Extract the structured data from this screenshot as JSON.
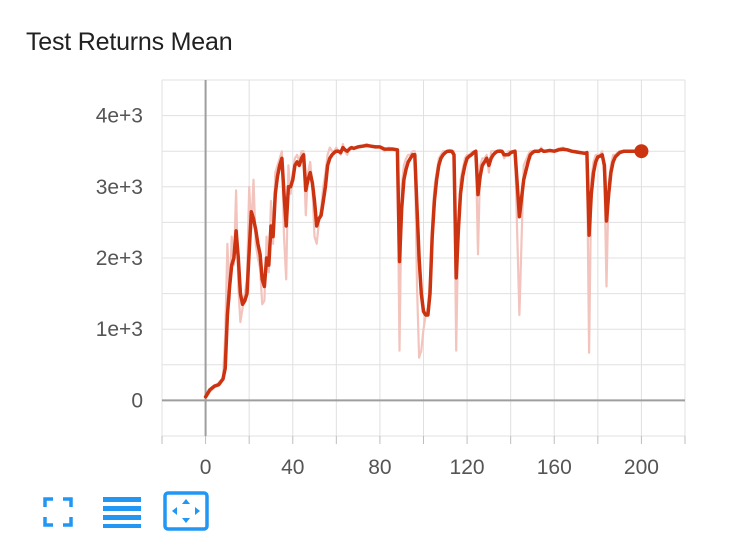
{
  "title": "Test Returns Mean",
  "colors": {
    "line": "#cc3311",
    "raw": "#f2c4bd",
    "grid": "#e0e0e0",
    "axis": "#9e9e9e",
    "accent": "#2196f3"
  },
  "toolbar": [
    {
      "name": "fit-domain-icon"
    },
    {
      "name": "toggle-log-scale-icon"
    },
    {
      "name": "fit-to-data-icon"
    }
  ],
  "chart_data": {
    "type": "line",
    "title": "Test Returns Mean",
    "xlabel": "",
    "ylabel": "",
    "xlim": [
      -20,
      220
    ],
    "ylim": [
      -500,
      4500
    ],
    "xticks": [
      0,
      40,
      80,
      120,
      160,
      200
    ],
    "xtick_labels": [
      "0",
      "40",
      "80",
      "120",
      "160",
      "200"
    ],
    "yticks": [
      0,
      1000,
      2000,
      3000,
      4000
    ],
    "ytick_labels": [
      "0",
      "1e+3",
      "2e+3",
      "3e+3",
      "4e+3"
    ],
    "grid": true,
    "series": [
      {
        "style": "smoothed",
        "x": [
          0,
          2,
          4,
          6,
          8,
          9,
          10,
          11,
          12,
          13,
          14,
          15,
          16,
          17,
          18,
          19,
          20,
          21,
          22,
          23,
          24,
          25,
          26,
          27,
          28,
          29,
          30,
          31,
          32,
          33,
          34,
          35,
          36,
          37,
          38,
          39,
          40,
          41,
          42,
          43,
          44,
          45,
          46,
          47,
          48,
          49,
          50,
          51,
          52,
          53,
          54,
          55,
          56,
          57,
          58,
          59,
          60,
          61,
          62,
          63,
          64,
          65,
          66,
          67,
          68,
          70,
          72,
          74,
          76,
          78,
          80,
          82,
          84,
          86,
          88,
          89,
          90,
          91,
          92,
          93,
          94,
          95,
          96,
          97,
          98,
          99,
          100,
          101,
          102,
          103,
          104,
          105,
          106,
          107,
          108,
          109,
          110,
          111,
          112,
          113,
          114,
          115,
          116,
          117,
          118,
          119,
          120,
          121,
          122,
          123,
          124,
          125,
          126,
          127,
          128,
          129,
          130,
          131,
          132,
          133,
          134,
          135,
          136,
          137,
          138,
          139,
          140,
          142,
          144,
          146,
          148,
          149,
          150,
          151,
          152,
          153,
          154,
          155,
          156,
          158,
          160,
          162,
          164,
          166,
          168,
          170,
          172,
          174,
          175,
          176,
          177,
          178,
          179,
          180,
          181,
          182,
          183,
          184,
          185,
          186,
          187,
          188,
          189,
          190,
          192,
          194,
          196,
          198,
          200
        ],
        "y": [
          50,
          150,
          200,
          220,
          300,
          450,
          1200,
          1600,
          1900,
          2000,
          2380,
          2000,
          1500,
          1350,
          1400,
          1500,
          2100,
          2650,
          2550,
          2400,
          2200,
          2050,
          1700,
          1600,
          2000,
          1900,
          2450,
          2300,
          2900,
          3150,
          3300,
          3400,
          2900,
          2450,
          3000,
          3000,
          3100,
          3300,
          3350,
          3300,
          3400,
          3450,
          2950,
          3100,
          3200,
          3050,
          2800,
          2450,
          2550,
          2600,
          2800,
          3000,
          3300,
          3400,
          3450,
          3480,
          3500,
          3500,
          3480,
          3550,
          3520,
          3500,
          3530,
          3550,
          3540,
          3560,
          3570,
          3580,
          3570,
          3560,
          3560,
          3530,
          3530,
          3530,
          3520,
          1950,
          2700,
          3100,
          3250,
          3350,
          3400,
          3450,
          3450,
          2700,
          2000,
          1500,
          1250,
          1200,
          1200,
          1500,
          2300,
          2800,
          3100,
          3300,
          3400,
          3450,
          3480,
          3500,
          3500,
          3500,
          3450,
          1720,
          2400,
          2900,
          3150,
          3300,
          3400,
          3430,
          3450,
          3480,
          3500,
          2890,
          3150,
          3300,
          3350,
          3400,
          3300,
          3400,
          3450,
          3480,
          3500,
          3500,
          3500,
          3450,
          3450,
          3450,
          3480,
          3500,
          2580,
          3100,
          3350,
          3450,
          3480,
          3500,
          3500,
          3500,
          3520,
          3500,
          3500,
          3510,
          3500,
          3520,
          3530,
          3520,
          3500,
          3490,
          3480,
          3470,
          3480,
          2320,
          2900,
          3200,
          3350,
          3420,
          3430,
          3450,
          3300,
          2520,
          2900,
          3200,
          3350,
          3420,
          3450,
          3480,
          3500,
          3500,
          3500,
          3500,
          3500
        ]
      },
      {
        "style": "raw",
        "x": [
          0,
          2,
          4,
          6,
          8,
          9,
          10,
          11,
          12,
          13,
          14,
          15,
          16,
          17,
          18,
          19,
          20,
          21,
          22,
          23,
          24,
          25,
          26,
          27,
          28,
          29,
          30,
          31,
          32,
          33,
          34,
          35,
          36,
          37,
          38,
          39,
          40,
          41,
          42,
          43,
          44,
          45,
          46,
          47,
          48,
          49,
          50,
          51,
          52,
          53,
          54,
          55,
          56,
          57,
          58,
          59,
          60,
          61,
          62,
          63,
          64,
          65,
          66,
          67,
          68,
          70,
          72,
          74,
          76,
          78,
          80,
          82,
          84,
          86,
          88,
          89,
          90,
          91,
          92,
          93,
          94,
          95,
          96,
          97,
          98,
          99,
          100,
          101,
          102,
          103,
          104,
          105,
          106,
          107,
          108,
          109,
          110,
          111,
          112,
          113,
          114,
          115,
          116,
          117,
          118,
          119,
          120,
          121,
          122,
          123,
          124,
          125,
          126,
          127,
          128,
          129,
          130,
          131,
          132,
          133,
          134,
          135,
          136,
          137,
          138,
          139,
          140,
          142,
          144,
          146,
          148,
          149,
          150,
          151,
          152,
          153,
          154,
          155,
          156,
          158,
          160,
          162,
          164,
          166,
          168,
          170,
          172,
          174,
          175,
          176,
          177,
          178,
          179,
          180,
          181,
          182,
          183,
          184,
          185,
          186,
          187,
          188,
          189,
          190,
          192,
          194,
          196,
          198,
          200
        ],
        "y": [
          30,
          120,
          180,
          250,
          320,
          900,
          2200,
          1400,
          2300,
          1900,
          2950,
          1600,
          1100,
          1300,
          1500,
          1700,
          3000,
          2400,
          3100,
          2200,
          2000,
          1850,
          1350,
          1400,
          2300,
          1800,
          2800,
          2200,
          3200,
          3300,
          3400,
          3500,
          2300,
          1700,
          3300,
          2900,
          3200,
          3400,
          3450,
          3350,
          3500,
          3500,
          2600,
          3200,
          3350,
          3000,
          2300,
          2200,
          2500,
          2700,
          3000,
          3200,
          3450,
          3550,
          3500,
          3500,
          3550,
          3500,
          3450,
          3600,
          3500,
          3450,
          3550,
          3560,
          3530,
          3570,
          3580,
          3600,
          3560,
          3550,
          3560,
          3500,
          3550,
          3540,
          3500,
          700,
          3000,
          3300,
          3400,
          3450,
          3450,
          3500,
          3500,
          1600,
          600,
          700,
          1000,
          1200,
          1300,
          1700,
          2500,
          3000,
          3200,
          3400,
          3450,
          3500,
          3500,
          3500,
          3520,
          3500,
          3500,
          700,
          2500,
          3100,
          3250,
          3400,
          3450,
          3450,
          3480,
          3500,
          3500,
          2050,
          3300,
          3400,
          3400,
          3450,
          3200,
          3500,
          3500,
          3500,
          3500,
          3520,
          3500,
          3400,
          3450,
          3500,
          3500,
          3500,
          1200,
          3300,
          3450,
          3500,
          3500,
          3500,
          3500,
          3500,
          3550,
          3500,
          3500,
          3520,
          3500,
          3540,
          3550,
          3520,
          3500,
          3480,
          3480,
          3460,
          3480,
          670,
          3100,
          3350,
          3450,
          3450,
          3450,
          3500,
          3150,
          1600,
          3050,
          3300,
          3450,
          3450,
          3480,
          3500,
          3500,
          3500,
          3500,
          3500,
          3500
        ]
      }
    ]
  }
}
